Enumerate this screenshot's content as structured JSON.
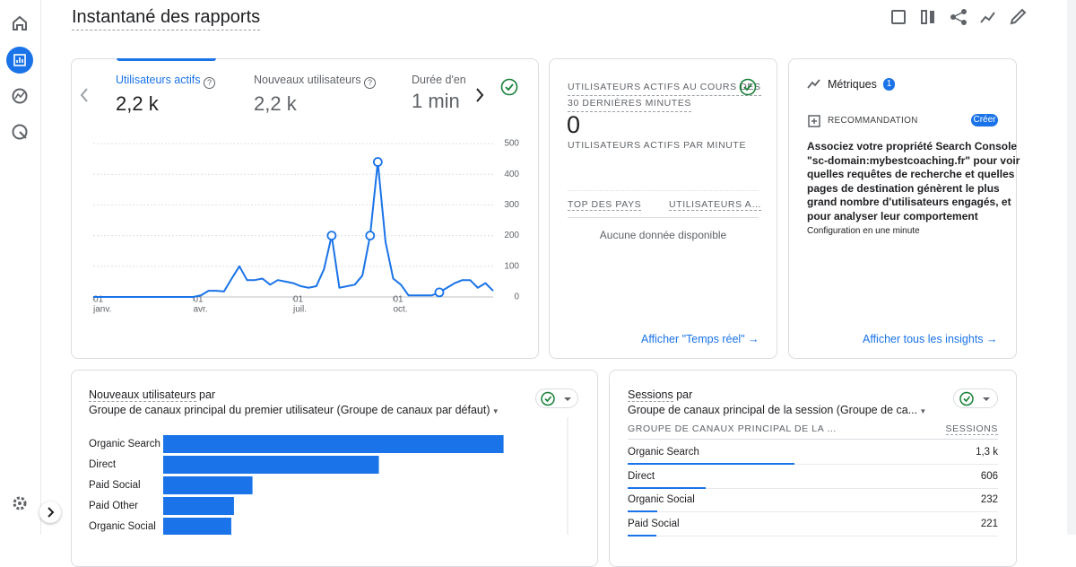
{
  "header": {
    "title": "Instantané des rapports"
  },
  "overview_card": {
    "tabs": [
      {
        "label": "Utilisateurs actifs",
        "value": "2,2 k"
      },
      {
        "label": "Nouveaux utilisateurs",
        "value": "2,2 k"
      },
      {
        "label": "Durée d'engagement",
        "value": "1 min"
      }
    ],
    "line_chart": {
      "type": "line",
      "color": "#1a73e8",
      "values": [
        0,
        0,
        0,
        0,
        0,
        0,
        0,
        0,
        0,
        0,
        0,
        0,
        0,
        0,
        5,
        20,
        20,
        18,
        60,
        100,
        55,
        55,
        60,
        40,
        55,
        50,
        45,
        35,
        30,
        35,
        90,
        200,
        30,
        35,
        40,
        70,
        200,
        440,
        180,
        60,
        40,
        5,
        5,
        5,
        5,
        15,
        30,
        45,
        55,
        55,
        30,
        45,
        20
      ],
      "markers": [
        31,
        36,
        37,
        45
      ],
      "ylim": [
        0,
        500
      ],
      "yticks": [
        0,
        100,
        200,
        300,
        400,
        500
      ],
      "grid": true,
      "x_labels": [
        {
          "day": "01",
          "month": "janv."
        },
        {
          "day": "01",
          "month": "avr."
        },
        {
          "day": "01",
          "month": "juil."
        },
        {
          "day": "01",
          "month": "oct."
        }
      ]
    }
  },
  "realtime_card": {
    "title_line1": "UTILISATEURS ACTIFS AU COURS DES",
    "title_line2": "30 DERNIÈRES MINUTES",
    "value": 0,
    "subtitle": "UTILISATEURS ACTIFS PAR MINUTE",
    "columns": [
      "TOP DES PAYS",
      "UTILISATEURS A…"
    ],
    "empty": "Aucune donnée disponible",
    "link": "Afficher \"Temps réel\""
  },
  "insights_card": {
    "title": "Métriques",
    "badge": "1",
    "section": "RECOMMANDATION",
    "action": "Créer",
    "text_lines": [
      "Associez votre propriété Search Console",
      "\"sc-domain:mybestcoaching.fr\" pour voir",
      "quelles requêtes de recherche et quelles",
      "pages de destination génèrent le plus",
      "grand nombre d'utilisateurs engagés, et",
      "pour analyser leur comportement"
    ],
    "note": "Configuration en une minute",
    "link": "Afficher tous les insights"
  },
  "bar_chart": {
    "type": "bar",
    "title": "Nouveaux utilisateurs",
    "title_suffix": "par",
    "subtitle": "Groupe de canaux principal du premier utilisateur (Groupe de canaux par défaut)",
    "categories": [
      "Organic Search",
      "Direct",
      "Paid Social",
      "Paid Other",
      "Organic Social"
    ],
    "values": [
      1010,
      640,
      265,
      210,
      202
    ],
    "xlim": [
      0,
      1200
    ],
    "color": "#1a73e8"
  },
  "sessions_table": {
    "title": "Sessions",
    "title_suffix": "par",
    "subtitle": "Groupe de canaux principal de la session (Groupe de ca...",
    "columns": [
      "GROUPE DE CANAUX PRINCIPAL DE LA …",
      "SESSIONS"
    ],
    "color": "#1a73e8",
    "rows": [
      {
        "label": "Organic Search",
        "value": 1300,
        "value_label": "1,3 k"
      },
      {
        "label": "Direct",
        "value": 606
      },
      {
        "label": "Organic Social",
        "value": 232
      },
      {
        "label": "Paid Social",
        "value": 221
      }
    ]
  }
}
